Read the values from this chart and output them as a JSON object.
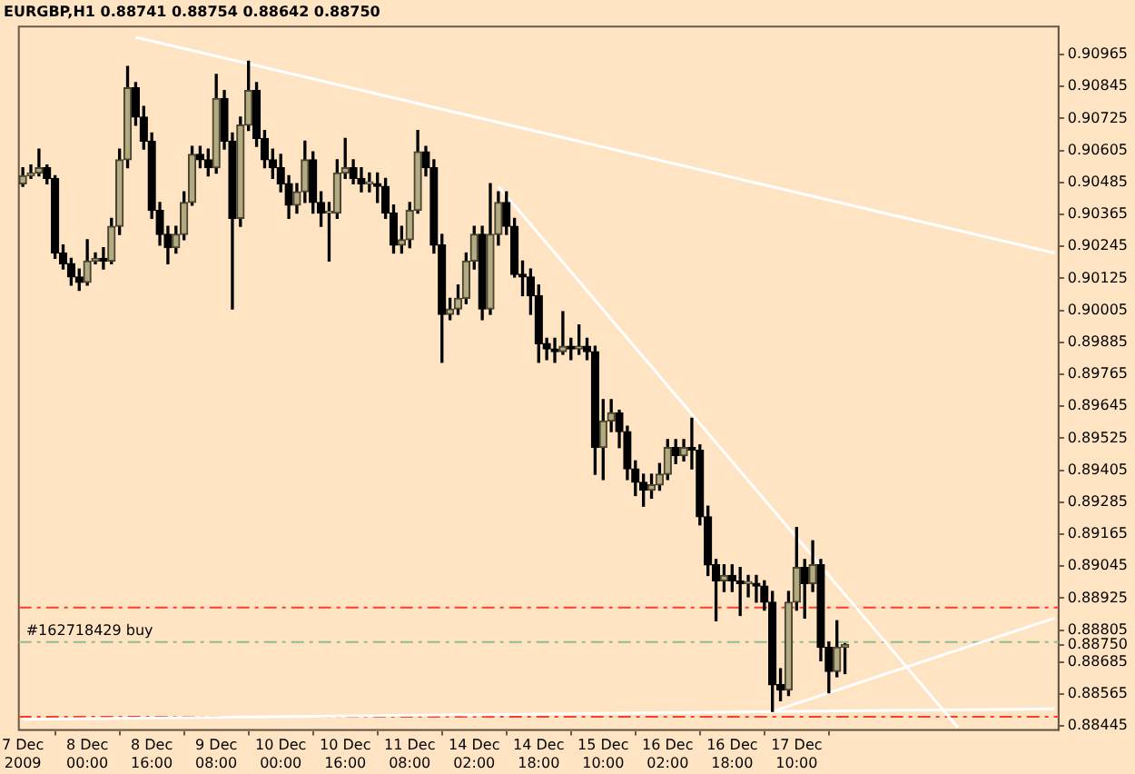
{
  "chart_data": {
    "type": "candlestick",
    "title": "EURGBP,H1 0.88741 0.88754 0.88642 0.88750",
    "categories": [
      "7 Dec 2009",
      null,
      null,
      null,
      null,
      null,
      null,
      null,
      "8 Dec 00:00",
      null,
      null,
      null,
      null,
      null,
      null,
      null,
      "8 Dec 16:00",
      null,
      null,
      null,
      null,
      null,
      null,
      null,
      "9 Dec 08:00",
      null,
      null,
      null,
      null,
      null,
      null,
      null,
      "10 Dec 00:00",
      null,
      null,
      null,
      null,
      null,
      null,
      null,
      "10 Dec 16:00",
      null,
      null,
      null,
      null,
      null,
      null,
      null,
      "11 Dec 08:00",
      null,
      null,
      null,
      null,
      null,
      null,
      null,
      "14 Dec 02:00",
      null,
      null,
      null,
      null,
      null,
      null,
      null,
      "14 Dec 18:00",
      null,
      null,
      null,
      null,
      null,
      null,
      null,
      "15 Dec 10:00",
      null,
      null,
      null,
      null,
      null,
      null,
      null,
      "16 Dec 02:00",
      null,
      null,
      null,
      null,
      null,
      null,
      null,
      "16 Dec 18:00",
      null,
      null,
      null,
      null,
      null,
      null,
      null,
      "17 Dec 10:00",
      null,
      null,
      null,
      null,
      null,
      null,
      null,
      null,
      null,
      null,
      null,
      null,
      null,
      null,
      null,
      null,
      null,
      null,
      null,
      null,
      null,
      null,
      null,
      null,
      null,
      null,
      null,
      null,
      null,
      null,
      null,
      null
    ],
    "ohlc": [
      [
        0.9048,
        0.9054,
        0.9047,
        0.9051
      ],
      [
        0.9051,
        0.9055,
        0.905,
        0.9052
      ],
      [
        0.9052,
        0.9061,
        0.9051,
        0.9054
      ],
      [
        0.9054,
        0.9055,
        0.9048,
        0.905
      ],
      [
        0.905,
        0.9051,
        0.902,
        0.9022
      ],
      [
        0.9022,
        0.9025,
        0.9016,
        0.9018
      ],
      [
        0.9018,
        0.902,
        0.901,
        0.9013
      ],
      [
        0.9013,
        0.9016,
        0.9008,
        0.9011
      ],
      [
        0.9011,
        0.9027,
        0.901,
        0.9019
      ],
      [
        0.9019,
        0.9022,
        0.9018,
        0.902
      ],
      [
        0.902,
        0.9024,
        0.9016,
        0.9019
      ],
      [
        0.9019,
        0.9035,
        0.9018,
        0.9032
      ],
      [
        0.9032,
        0.9061,
        0.9029,
        0.9057
      ],
      [
        0.9057,
        0.9092,
        0.9054,
        0.9084
      ],
      [
        0.9084,
        0.9086,
        0.907,
        0.9073
      ],
      [
        0.9073,
        0.9077,
        0.9061,
        0.9064
      ],
      [
        0.9064,
        0.9067,
        0.9035,
        0.9038
      ],
      [
        0.9038,
        0.9041,
        0.9025,
        0.9029
      ],
      [
        0.9029,
        0.9032,
        0.9018,
        0.9024
      ],
      [
        0.9024,
        0.9032,
        0.9022,
        0.9029
      ],
      [
        0.9029,
        0.9045,
        0.9027,
        0.9041
      ],
      [
        0.9041,
        0.9062,
        0.904,
        0.9059
      ],
      [
        0.9059,
        0.9062,
        0.9054,
        0.9057
      ],
      [
        0.9057,
        0.9061,
        0.9051,
        0.9054
      ],
      [
        0.9054,
        0.9089,
        0.9052,
        0.908
      ],
      [
        0.908,
        0.9083,
        0.9061,
        0.9064
      ],
      [
        0.9064,
        0.9067,
        0.9001,
        0.9035
      ],
      [
        0.9035,
        0.9073,
        0.9032,
        0.907
      ],
      [
        0.907,
        0.9094,
        0.9068,
        0.9083
      ],
      [
        0.9083,
        0.9086,
        0.9062,
        0.9065
      ],
      [
        0.9065,
        0.9068,
        0.9054,
        0.9057
      ],
      [
        0.9057,
        0.9061,
        0.905,
        0.9054
      ],
      [
        0.9054,
        0.9059,
        0.9045,
        0.9048
      ],
      [
        0.9048,
        0.9051,
        0.9035,
        0.904
      ],
      [
        0.904,
        0.9048,
        0.9037,
        0.9045
      ],
      [
        0.9045,
        0.9064,
        0.9041,
        0.9057
      ],
      [
        0.9057,
        0.906,
        0.9037,
        0.9041
      ],
      [
        0.9041,
        0.9045,
        0.9032,
        0.9037
      ],
      [
        0.9037,
        0.9041,
        0.9019,
        0.9037
      ],
      [
        0.9037,
        0.9057,
        0.9035,
        0.9052
      ],
      [
        0.9052,
        0.9065,
        0.905,
        0.9054
      ],
      [
        0.9054,
        0.9057,
        0.9048,
        0.905
      ],
      [
        0.905,
        0.9054,
        0.9045,
        0.9048
      ],
      [
        0.9048,
        0.9052,
        0.9045,
        0.9048
      ],
      [
        0.9048,
        0.9052,
        0.9041,
        0.9047
      ],
      [
        0.9047,
        0.905,
        0.9035,
        0.9037
      ],
      [
        0.9037,
        0.904,
        0.9022,
        0.9025
      ],
      [
        0.9025,
        0.9032,
        0.9022,
        0.9027
      ],
      [
        0.9027,
        0.9041,
        0.9024,
        0.9038
      ],
      [
        0.9038,
        0.9068,
        0.9037,
        0.906
      ],
      [
        0.906,
        0.9062,
        0.9051,
        0.9054
      ],
      [
        0.9054,
        0.9057,
        0.9022,
        0.9025
      ],
      [
        0.9025,
        0.9029,
        0.8981,
        0.8999
      ],
      [
        0.8999,
        0.9005,
        0.8997,
        0.9001
      ],
      [
        0.9001,
        0.901,
        0.8999,
        0.9005
      ],
      [
        0.9005,
        0.9022,
        0.9003,
        0.9019
      ],
      [
        0.9019,
        0.9032,
        0.9016,
        0.9029
      ],
      [
        0.9029,
        0.9032,
        0.8997,
        0.9001
      ],
      [
        0.9001,
        0.9048,
        0.8999,
        0.9029
      ],
      [
        0.9029,
        0.9045,
        0.9025,
        0.9041
      ],
      [
        0.9041,
        0.9045,
        0.9029,
        0.9032
      ],
      [
        0.9032,
        0.9035,
        0.9013,
        0.9014
      ],
      [
        0.9014,
        0.9019,
        0.9006,
        0.9013
      ],
      [
        0.9013,
        0.9016,
        0.8999,
        0.9006
      ],
      [
        0.9006,
        0.901,
        0.8981,
        0.8988
      ],
      [
        0.8988,
        0.899,
        0.8982,
        0.8986
      ],
      [
        0.8986,
        0.899,
        0.8981,
        0.8985
      ],
      [
        0.8985,
        0.9,
        0.8984,
        0.8987
      ],
      [
        0.8987,
        0.899,
        0.8982,
        0.8986
      ],
      [
        0.8986,
        0.8995,
        0.8984,
        0.8987
      ],
      [
        0.8987,
        0.899,
        0.8982,
        0.8985
      ],
      [
        0.8985,
        0.8987,
        0.8939,
        0.8949
      ],
      [
        0.8949,
        0.8967,
        0.8937,
        0.8959
      ],
      [
        0.8959,
        0.8967,
        0.8955,
        0.8962
      ],
      [
        0.8962,
        0.8963,
        0.8949,
        0.8955
      ],
      [
        0.8955,
        0.8957,
        0.8937,
        0.8941
      ],
      [
        0.8941,
        0.8944,
        0.8931,
        0.8936
      ],
      [
        0.8936,
        0.8939,
        0.8927,
        0.8933
      ],
      [
        0.8933,
        0.8939,
        0.893,
        0.8935
      ],
      [
        0.8935,
        0.8943,
        0.8933,
        0.8939
      ],
      [
        0.8939,
        0.8952,
        0.8937,
        0.8949
      ],
      [
        0.8949,
        0.8952,
        0.8943,
        0.8946
      ],
      [
        0.8946,
        0.8952,
        0.8944,
        0.8949
      ],
      [
        0.8949,
        0.896,
        0.8941,
        0.8948
      ],
      [
        0.8948,
        0.895,
        0.892,
        0.8923
      ],
      [
        0.8923,
        0.8927,
        0.8901,
        0.8905
      ],
      [
        0.8905,
        0.8907,
        0.8884,
        0.8899
      ],
      [
        0.8899,
        0.8905,
        0.8895,
        0.8901
      ],
      [
        0.8901,
        0.8905,
        0.8895,
        0.8899
      ],
      [
        0.8899,
        0.8904,
        0.8886,
        0.8898
      ],
      [
        0.8898,
        0.8901,
        0.8893,
        0.8898
      ],
      [
        0.8898,
        0.8901,
        0.8891,
        0.8897
      ],
      [
        0.8897,
        0.8899,
        0.8888,
        0.8891
      ],
      [
        0.8891,
        0.8895,
        0.885,
        0.886
      ],
      [
        0.886,
        0.8866,
        0.8854,
        0.8858
      ],
      [
        0.8858,
        0.8895,
        0.8856,
        0.8891
      ],
      [
        0.8891,
        0.8919,
        0.8888,
        0.8904
      ],
      [
        0.8904,
        0.8907,
        0.8885,
        0.8898
      ],
      [
        0.8898,
        0.8914,
        0.8895,
        0.8905
      ],
      [
        0.8905,
        0.8907,
        0.8869,
        0.8874
      ],
      [
        0.8874,
        0.8876,
        0.8857,
        0.8865
      ],
      [
        0.8865,
        0.8884,
        0.8863,
        0.88741
      ],
      [
        0.88741,
        0.88754,
        0.88642,
        0.8875
      ],
      null,
      null,
      null,
      null,
      null,
      null,
      null,
      null,
      null,
      null,
      null,
      null,
      null,
      null,
      null,
      null,
      null,
      null,
      null,
      null,
      null,
      null,
      null,
      null,
      null,
      null
    ],
    "series": [
      {
        "type": "line",
        "color": "#ffffff",
        "values": [
          null,
          null,
          null,
          null,
          null,
          null,
          null,
          null,
          null,
          null,
          null,
          null,
          null,
          null,
          0.9103,
          null,
          null,
          null,
          null,
          null,
          null,
          null,
          null,
          null,
          null,
          null,
          null,
          null,
          null,
          null,
          null,
          null,
          null,
          null,
          null,
          null,
          null,
          null,
          null,
          null,
          null,
          null,
          null,
          null,
          null,
          null,
          null,
          null,
          null,
          null,
          null,
          null,
          null,
          null,
          null,
          null,
          null,
          null,
          null,
          null,
          null,
          null,
          null,
          null,
          null,
          null,
          null,
          null,
          null,
          null,
          null,
          null,
          null,
          null,
          null,
          null,
          null,
          null,
          null,
          null,
          null,
          null,
          null,
          null,
          null,
          null,
          null,
          null,
          null,
          null,
          null,
          null,
          null,
          null,
          null,
          null,
          null,
          null,
          null,
          null,
          null,
          null,
          null,
          null,
          null,
          null,
          null,
          null,
          null,
          null,
          null,
          null,
          null,
          null,
          null,
          null,
          null,
          null,
          null,
          null,
          null,
          null,
          null,
          null,
          null,
          null,
          null,
          null,
          0.9022
        ]
      },
      {
        "type": "line",
        "color": "#ffffff",
        "values": [
          null,
          null,
          null,
          null,
          null,
          null,
          null,
          null,
          null,
          null,
          null,
          null,
          null,
          null,
          null,
          null,
          null,
          null,
          null,
          null,
          null,
          null,
          null,
          null,
          null,
          null,
          null,
          null,
          null,
          null,
          null,
          null,
          null,
          null,
          null,
          null,
          null,
          null,
          null,
          null,
          null,
          null,
          null,
          null,
          null,
          null,
          null,
          null,
          null,
          null,
          null,
          null,
          null,
          null,
          null,
          null,
          null,
          null,
          null,
          0.9047,
          null,
          null,
          null,
          null,
          null,
          null,
          null,
          null,
          null,
          null,
          null,
          null,
          null,
          null,
          null,
          null,
          null,
          null,
          null,
          null,
          null,
          null,
          null,
          null,
          null,
          null,
          null,
          null,
          null,
          null,
          null,
          null,
          null,
          null,
          null,
          null,
          null,
          null,
          null,
          null,
          null,
          null,
          null,
          null,
          null,
          null,
          null,
          null,
          null,
          null,
          null,
          null,
          null,
          null,
          null,
          null,
          0.8844,
          null,
          null,
          null,
          null,
          null,
          null,
          null,
          null,
          null,
          null,
          null,
          null
        ]
      },
      {
        "type": "line",
        "color": "#ffffff",
        "values": [
          null,
          null,
          null,
          null,
          null,
          null,
          null,
          null,
          null,
          null,
          null,
          null,
          null,
          null,
          null,
          null,
          null,
          null,
          null,
          null,
          null,
          null,
          null,
          null,
          null,
          null,
          null,
          null,
          null,
          null,
          null,
          null,
          null,
          null,
          null,
          null,
          null,
          null,
          null,
          null,
          null,
          null,
          null,
          null,
          null,
          null,
          null,
          null,
          null,
          null,
          null,
          null,
          null,
          null,
          null,
          null,
          null,
          null,
          null,
          null,
          null,
          null,
          null,
          null,
          null,
          null,
          null,
          null,
          null,
          null,
          null,
          null,
          null,
          null,
          null,
          null,
          null,
          null,
          null,
          null,
          null,
          null,
          null,
          null,
          null,
          null,
          null,
          null,
          null,
          null,
          null,
          null,
          null,
          0.885,
          null,
          null,
          null,
          null,
          null,
          null,
          null,
          null,
          null,
          null,
          null,
          null,
          null,
          null,
          null,
          null,
          null,
          null,
          null,
          null,
          null,
          null,
          null,
          null,
          null,
          null,
          null,
          null,
          null,
          null,
          null,
          null,
          null,
          null,
          0.8885
        ]
      },
      {
        "type": "line",
        "color": "#ffffff",
        "values": [
          0.8847,
          null,
          null,
          null,
          null,
          null,
          null,
          null,
          null,
          null,
          null,
          null,
          null,
          null,
          null,
          null,
          null,
          null,
          null,
          null,
          null,
          null,
          null,
          null,
          null,
          null,
          null,
          null,
          null,
          null,
          null,
          null,
          null,
          null,
          null,
          null,
          null,
          null,
          null,
          null,
          null,
          null,
          null,
          null,
          null,
          null,
          null,
          null,
          null,
          null,
          null,
          null,
          null,
          null,
          null,
          null,
          null,
          null,
          null,
          null,
          null,
          null,
          null,
          null,
          null,
          null,
          null,
          null,
          null,
          null,
          null,
          null,
          null,
          null,
          null,
          null,
          null,
          null,
          null,
          null,
          null,
          null,
          null,
          null,
          null,
          null,
          null,
          null,
          null,
          null,
          null,
          null,
          null,
          null,
          null,
          null,
          null,
          null,
          null,
          null,
          null,
          null,
          null,
          null,
          null,
          null,
          null,
          null,
          null,
          null,
          null,
          null,
          null,
          null,
          null,
          null,
          null,
          null,
          null,
          null,
          null,
          null,
          null,
          null,
          null,
          null,
          null,
          null,
          0.8851
        ]
      }
    ],
    "ylim": [
      0.8843,
      0.9107
    ],
    "yticks": [
      0.90965,
      0.90845,
      0.90725,
      0.90605,
      0.90485,
      0.90365,
      0.90245,
      0.90125,
      0.90005,
      0.89885,
      0.89765,
      0.89645,
      0.89525,
      0.89405,
      0.89285,
      0.89165,
      0.89045,
      0.88925,
      0.88805,
      {
        "value": 0.8875,
        "label": "0.88750"
      },
      0.88685,
      0.88565,
      0.88445
    ],
    "ref_lines": [
      {
        "axis": "y",
        "value": 0.8889,
        "color": "#ff3c28",
        "line_style": "dashed"
      },
      {
        "axis": "y",
        "value": 0.8876,
        "label": "#162718429 buy",
        "color": "#8fbc8f",
        "line_style": "dashed"
      },
      {
        "axis": "y",
        "value": 0.8848,
        "color": "#ff3c28",
        "line_style": "dashed"
      }
    ],
    "grid": false,
    "legend": false
  }
}
